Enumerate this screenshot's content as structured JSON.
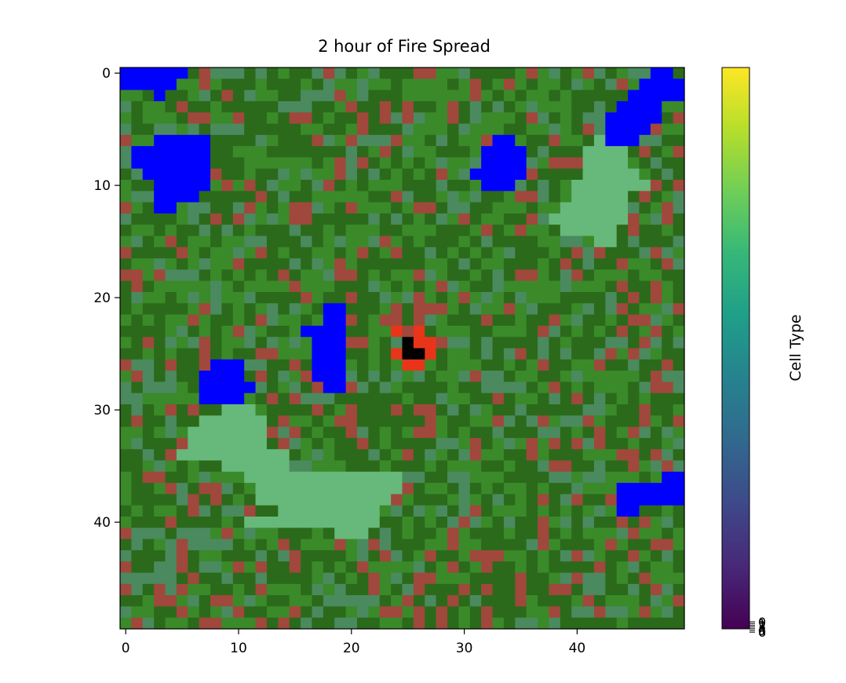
{
  "chart_data": {
    "type": "heatmap",
    "title": "2 hour of Fire Spread",
    "xlabel": "",
    "ylabel": "",
    "grid_size": [
      50,
      50
    ],
    "xlim": [
      -0.5,
      49.5
    ],
    "ylim": [
      49.5,
      -0.5
    ],
    "x_ticks": [
      0,
      10,
      20,
      30,
      40
    ],
    "y_ticks": [
      0,
      10,
      20,
      30,
      40
    ],
    "grid": false,
    "palette": {
      "tree_dark": "#2b6a1a",
      "tree": "#3a8a2a",
      "shrub": "#4a8a5e",
      "grass": "#66b97a",
      "bare": "#a0483c",
      "water": "#0000ff",
      "burning": "#e8351a",
      "burnt": "#000000"
    },
    "features": {
      "water": [
        [
          0,
          0,
          5,
          0
        ],
        [
          1,
          0,
          4,
          1
        ],
        [
          2,
          3,
          3,
          2
        ],
        [
          6,
          3,
          7,
          5
        ],
        [
          7,
          1,
          7,
          7
        ],
        [
          8,
          1,
          7,
          8
        ],
        [
          9,
          2,
          7,
          9
        ],
        [
          10,
          3,
          7,
          10
        ],
        [
          11,
          3,
          6,
          11
        ],
        [
          12,
          3,
          4,
          12
        ],
        [
          21,
          18,
          19,
          20
        ],
        [
          22,
          18,
          19,
          21
        ],
        [
          23,
          16,
          19,
          22
        ],
        [
          24,
          17,
          19,
          23
        ],
        [
          25,
          17,
          19,
          24
        ],
        [
          26,
          17,
          19,
          25
        ],
        [
          27,
          17,
          19,
          26
        ],
        [
          28,
          18,
          19,
          27
        ],
        [
          26,
          8,
          10,
          26
        ],
        [
          27,
          7,
          10,
          27
        ],
        [
          28,
          7,
          11,
          28
        ],
        [
          29,
          7,
          10,
          29
        ],
        [
          6,
          33,
          34,
          6
        ],
        [
          7,
          32,
          35,
          7
        ],
        [
          8,
          32,
          35,
          8
        ],
        [
          9,
          31,
          35,
          9
        ],
        [
          10,
          32,
          34,
          10
        ],
        [
          0,
          47,
          48,
          0
        ],
        [
          1,
          46,
          49,
          1
        ],
        [
          2,
          45,
          49,
          2
        ],
        [
          3,
          44,
          47,
          3
        ],
        [
          4,
          43,
          47,
          4
        ],
        [
          5,
          43,
          46,
          5
        ],
        [
          6,
          43,
          45,
          6
        ],
        [
          36,
          48,
          49,
          36
        ],
        [
          37,
          44,
          49,
          37
        ],
        [
          38,
          44,
          49,
          38
        ],
        [
          39,
          44,
          45,
          39
        ]
      ],
      "grass": [
        [
          30,
          9,
          11,
          30
        ],
        [
          31,
          7,
          12,
          31
        ],
        [
          32,
          6,
          12,
          32
        ],
        [
          33,
          6,
          12,
          33
        ],
        [
          34,
          5,
          14,
          34
        ],
        [
          35,
          9,
          14,
          35
        ],
        [
          36,
          11,
          24,
          36
        ],
        [
          37,
          12,
          24,
          37
        ],
        [
          38,
          12,
          23,
          38
        ],
        [
          39,
          14,
          22,
          39
        ],
        [
          40,
          11,
          22,
          40
        ],
        [
          41,
          19,
          21,
          41
        ],
        [
          6,
          42,
          43,
          6
        ],
        [
          7,
          41,
          44,
          7
        ],
        [
          8,
          41,
          44,
          8
        ],
        [
          9,
          41,
          45,
          9
        ],
        [
          10,
          40,
          46,
          10
        ],
        [
          11,
          40,
          44,
          11
        ],
        [
          12,
          39,
          44,
          12
        ],
        [
          13,
          38,
          44,
          13
        ],
        [
          14,
          39,
          43,
          14
        ],
        [
          15,
          42,
          43,
          15
        ]
      ],
      "burnt": [
        [
          24,
          25
        ],
        [
          25,
          25
        ],
        [
          25,
          26
        ]
      ],
      "burning": [
        [
          23,
          24
        ],
        [
          23,
          26
        ],
        [
          24,
          26
        ],
        [
          25,
          24
        ],
        [
          25,
          27
        ],
        [
          26,
          25
        ],
        [
          24,
          27
        ],
        [
          26,
          26
        ]
      ]
    },
    "colorbar": {
      "label": "Cell Type",
      "colors": [
        "#440154",
        "#482878",
        "#3e4989",
        "#31688e",
        "#26828e",
        "#1f9e89",
        "#35b779",
        "#6ece58",
        "#b5de2b",
        "#fde725"
      ],
      "tick_labels": [
        "0",
        "1",
        "2",
        "3",
        "4",
        "5",
        "6"
      ]
    }
  }
}
